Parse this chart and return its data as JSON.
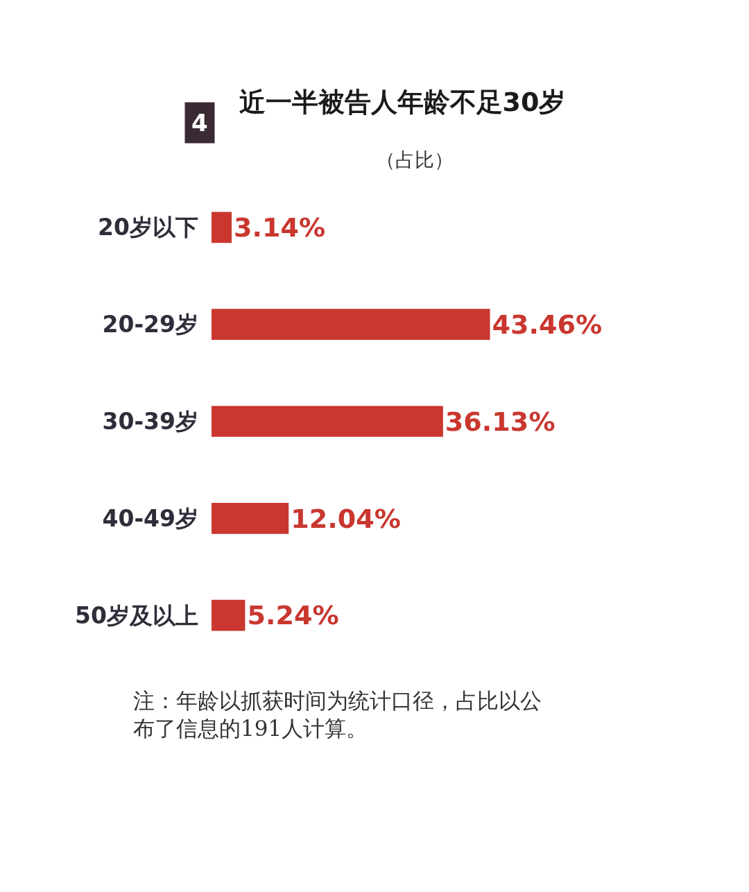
{
  "chart_data": {
    "type": "bar",
    "orientation": "horizontal",
    "title": "近一半被告人年龄不足30岁",
    "subtitle": "（占比）",
    "categories": [
      "20岁以下",
      "20-29岁",
      "30-39岁",
      "40-49岁",
      "50岁及以上"
    ],
    "values": [
      3.14,
      43.46,
      36.13,
      12.04,
      5.24
    ],
    "value_labels": [
      "3.14%",
      "43.46%",
      "36.13%",
      "12.04%",
      "5.24%"
    ],
    "color": "#c9372f",
    "annotations": [
      "4",
      "注：年龄以抓获时间为统计口径，占比以公布了信息的191人计算。"
    ],
    "legend": false
  }
}
